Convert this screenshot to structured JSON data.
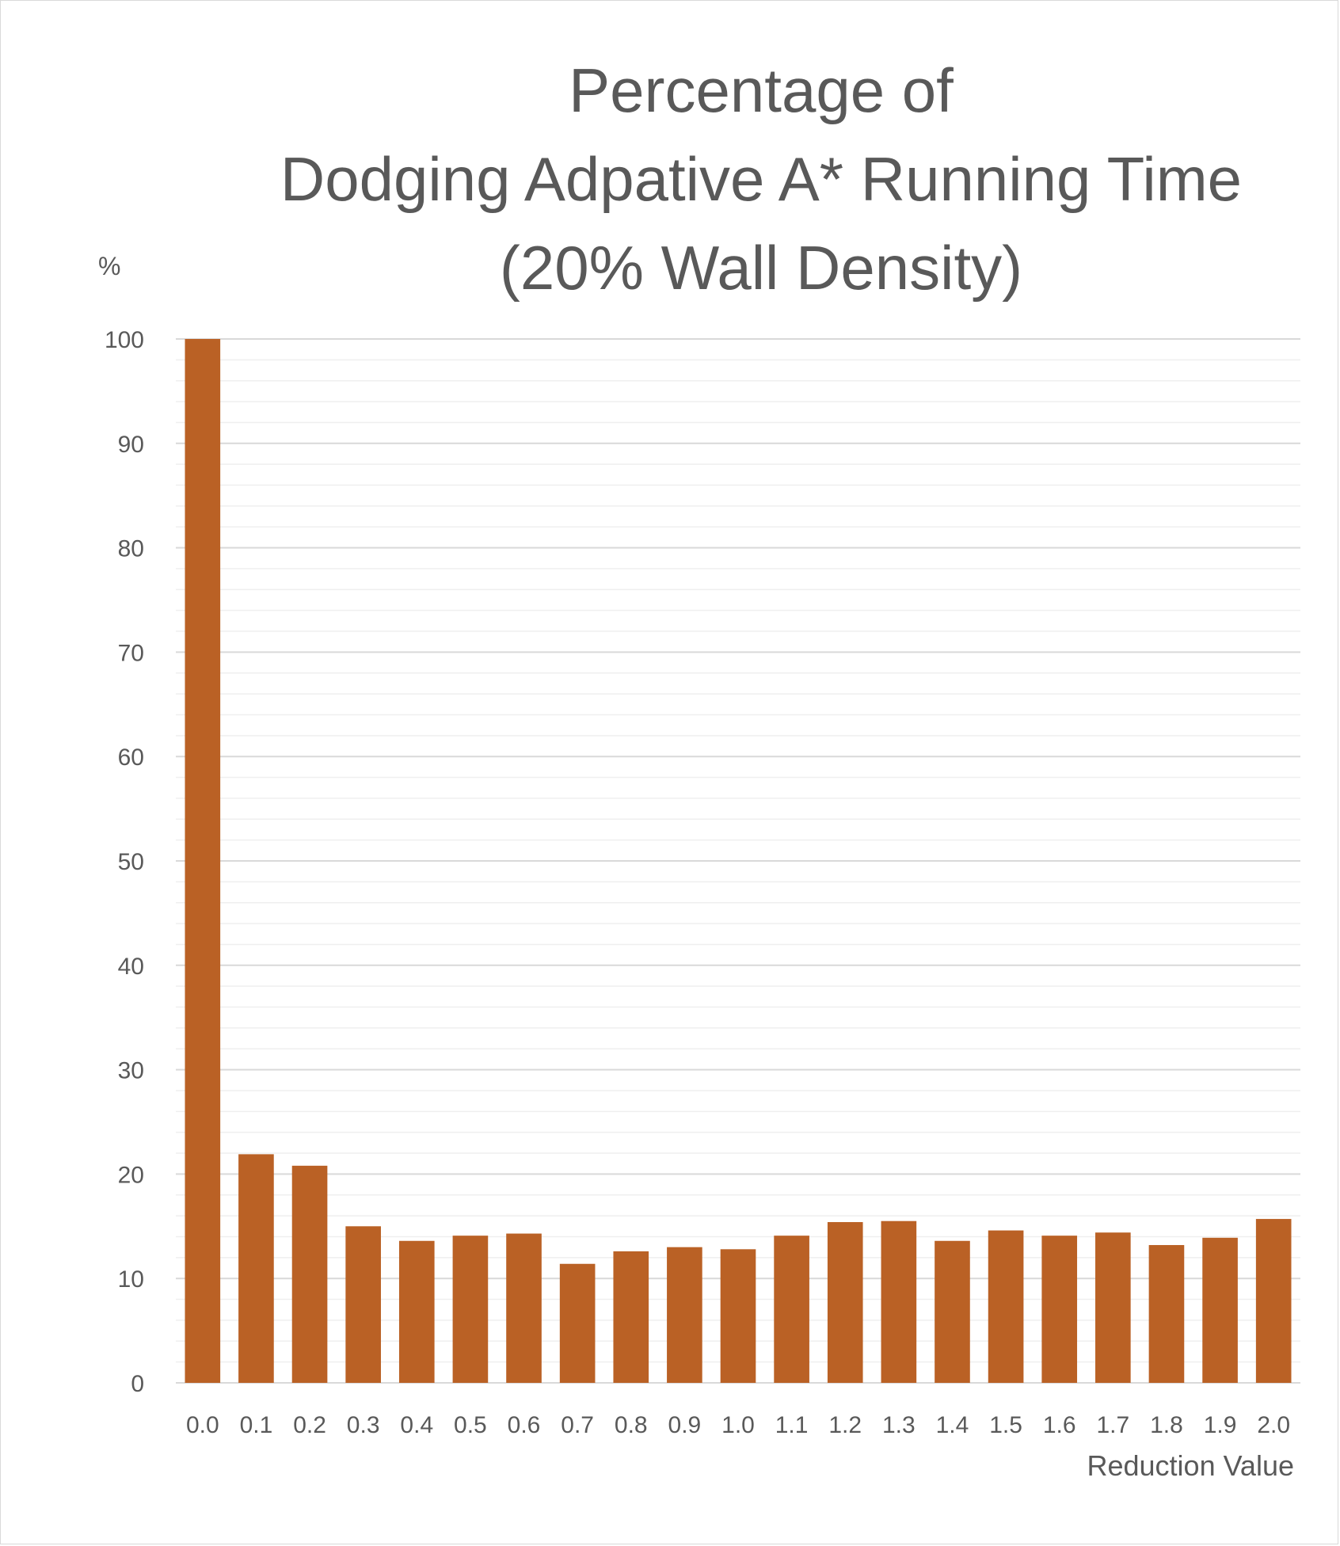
{
  "chart_data": {
    "type": "bar",
    "title_lines": [
      "Percentage of",
      "Dodging Adpative A* Running Time",
      "(20% Wall Density)"
    ],
    "ylabel": "%",
    "xlabel": "Reduction Value",
    "categories": [
      "0.0",
      "0.1",
      "0.2",
      "0.3",
      "0.4",
      "0.5",
      "0.6",
      "0.7",
      "0.8",
      "0.9",
      "1.0",
      "1.1",
      "1.2",
      "1.3",
      "1.4",
      "1.5",
      "1.6",
      "1.7",
      "1.8",
      "1.9",
      "2.0"
    ],
    "values": [
      100,
      21.9,
      20.8,
      15.0,
      13.6,
      14.1,
      14.3,
      11.4,
      12.6,
      13.0,
      12.8,
      14.1,
      15.4,
      15.5,
      13.6,
      14.6,
      14.1,
      14.4,
      13.2,
      13.9,
      15.7
    ],
    "ylim": [
      0,
      100
    ],
    "yticks": [
      "0",
      "10",
      "20",
      "30",
      "40",
      "50",
      "60",
      "70",
      "80",
      "90",
      "100"
    ],
    "grid": true,
    "minor_grid": true,
    "bar_color": "#BA6125",
    "gridline_color": "#d9d9d9",
    "text_color": "#595959"
  }
}
